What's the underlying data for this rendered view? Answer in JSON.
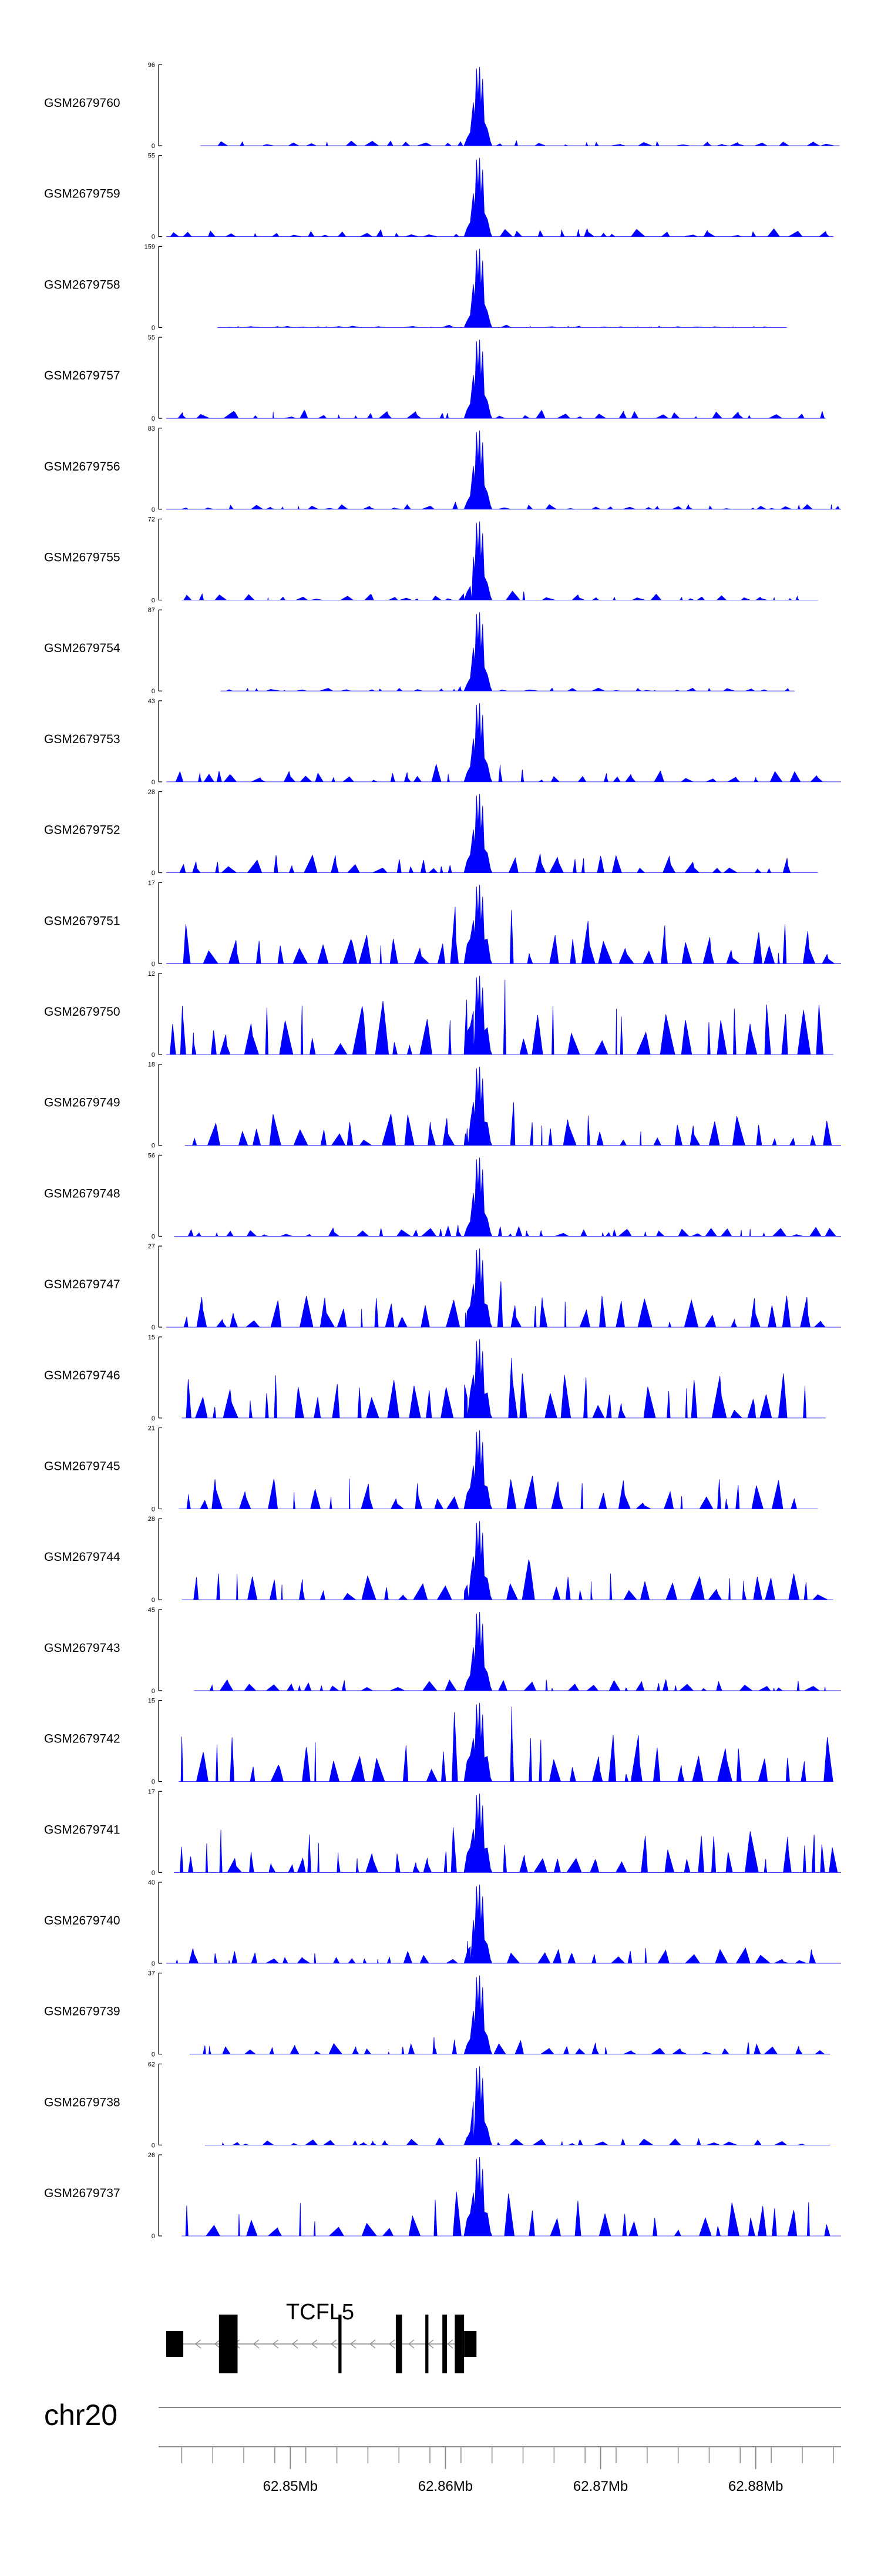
{
  "chart_data": {
    "type": "area",
    "title": "",
    "chromosome": "chr20",
    "gene": {
      "name": "TCFL5",
      "strand": "-",
      "start": 62.8428,
      "end": 62.8615,
      "cds_start": 62.8431,
      "cds_end": 62.8611,
      "exons": [
        [
          62.842,
          62.8431
        ],
        [
          62.8454,
          62.8466
        ],
        [
          62.8531,
          62.8533
        ],
        [
          62.8568,
          62.8572
        ],
        [
          62.8587,
          62.8589
        ],
        [
          62.8598,
          62.8601
        ],
        [
          62.8606,
          62.8612
        ],
        [
          62.8612,
          62.862
        ]
      ]
    },
    "axis": {
      "xlim": [
        62.842,
        62.8855
      ],
      "major_ticks": [
        62.85,
        62.86,
        62.87,
        62.88
      ],
      "major_labels": [
        "62.85Mb",
        "62.86Mb",
        "62.87Mb",
        "62.88Mb"
      ],
      "minor_ticks": [
        62.843,
        62.845,
        62.847,
        62.849,
        62.851,
        62.853,
        62.855,
        62.857,
        62.859,
        62.861,
        62.863,
        62.865,
        62.867,
        62.869,
        62.871,
        62.873,
        62.875,
        62.877,
        62.879,
        62.881,
        62.883,
        62.885
      ]
    },
    "peak_center": 62.8621,
    "tracks": [
      {
        "name": "GSM2679760",
        "ymax": "96",
        "max": 96,
        "seed": 11,
        "noise": 0.06,
        "start": 62.8442,
        "end": 62.8854
      },
      {
        "name": "GSM2679759",
        "ymax": "55",
        "max": 55,
        "seed": 12,
        "noise": 0.1,
        "start": 62.842,
        "end": 62.885
      },
      {
        "name": "GSM2679758",
        "ymax": "159",
        "max": 159,
        "seed": 13,
        "noise": 0.02,
        "start": 62.8453,
        "end": 62.882
      },
      {
        "name": "GSM2679757",
        "ymax": "55",
        "max": 55,
        "seed": 14,
        "noise": 0.11,
        "start": 62.842,
        "end": 62.8845
      },
      {
        "name": "GSM2679756",
        "ymax": "83",
        "max": 83,
        "seed": 15,
        "noise": 0.06,
        "start": 62.842,
        "end": 62.8855
      },
      {
        "name": "GSM2679755",
        "ymax": "72",
        "max": 72,
        "seed": 16,
        "noise": 0.08,
        "start": 62.843,
        "end": 62.884
      },
      {
        "name": "GSM2679754",
        "ymax": "87",
        "max": 87,
        "seed": 17,
        "noise": 0.04,
        "start": 62.8455,
        "end": 62.8825
      },
      {
        "name": "GSM2679753",
        "ymax": "43",
        "max": 43,
        "seed": 18,
        "noise": 0.14,
        "start": 62.842,
        "end": 62.8855
      },
      {
        "name": "GSM2679752",
        "ymax": "28",
        "max": 28,
        "seed": 19,
        "noise": 0.25,
        "start": 62.842,
        "end": 62.884
      },
      {
        "name": "GSM2679751",
        "ymax": "17",
        "max": 17,
        "seed": 20,
        "noise": 0.55,
        "start": 62.842,
        "end": 62.8855
      },
      {
        "name": "GSM2679750",
        "ymax": "12",
        "max": 12,
        "seed": 21,
        "noise": 0.7,
        "start": 62.842,
        "end": 62.885
      },
      {
        "name": "GSM2679749",
        "ymax": "18",
        "max": 18,
        "seed": 22,
        "noise": 0.45,
        "start": 62.8432,
        "end": 62.8855
      },
      {
        "name": "GSM2679748",
        "ymax": "56",
        "max": 56,
        "seed": 23,
        "noise": 0.12,
        "start": 62.8425,
        "end": 62.8855
      },
      {
        "name": "GSM2679747",
        "ymax": "27",
        "max": 27,
        "seed": 24,
        "noise": 0.4,
        "start": 62.842,
        "end": 62.8855
      },
      {
        "name": "GSM2679746",
        "ymax": "15",
        "max": 15,
        "seed": 25,
        "noise": 0.6,
        "start": 62.843,
        "end": 62.8845
      },
      {
        "name": "GSM2679745",
        "ymax": "21",
        "max": 21,
        "seed": 26,
        "noise": 0.4,
        "start": 62.8428,
        "end": 62.884
      },
      {
        "name": "GSM2679744",
        "ymax": "28",
        "max": 28,
        "seed": 27,
        "noise": 0.35,
        "start": 62.843,
        "end": 62.885
      },
      {
        "name": "GSM2679743",
        "ymax": "45",
        "max": 45,
        "seed": 28,
        "noise": 0.15,
        "start": 62.8438,
        "end": 62.8855
      },
      {
        "name": "GSM2679742",
        "ymax": "15",
        "max": 15,
        "seed": 29,
        "noise": 0.6,
        "start": 62.8428,
        "end": 62.885
      },
      {
        "name": "GSM2679741",
        "ymax": "17",
        "max": 17,
        "seed": 30,
        "noise": 0.55,
        "start": 62.8425,
        "end": 62.8855
      },
      {
        "name": "GSM2679740",
        "ymax": "40",
        "max": 40,
        "seed": 31,
        "noise": 0.2,
        "start": 62.842,
        "end": 62.8855
      },
      {
        "name": "GSM2679739",
        "ymax": "37",
        "max": 37,
        "seed": 32,
        "noise": 0.15,
        "start": 62.8435,
        "end": 62.8848
      },
      {
        "name": "GSM2679738",
        "ymax": "62",
        "max": 62,
        "seed": 33,
        "noise": 0.08,
        "start": 62.8445,
        "end": 62.8848
      },
      {
        "name": "GSM2679737",
        "ymax": "26",
        "max": 26,
        "seed": 34,
        "noise": 0.45,
        "start": 62.843,
        "end": 62.8855
      }
    ],
    "ymin_label": "0",
    "fill_color": "#0000ff"
  }
}
